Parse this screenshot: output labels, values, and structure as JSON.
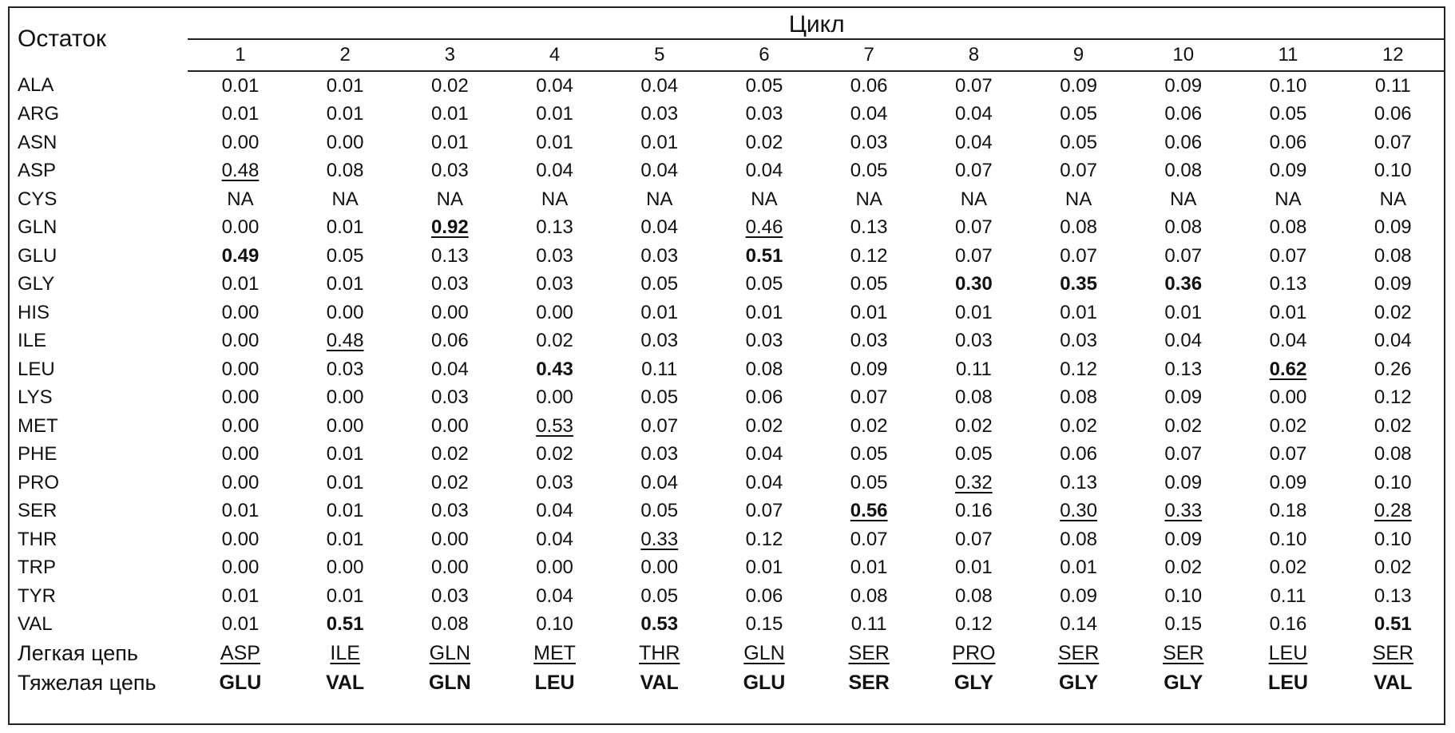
{
  "header": {
    "row_label": "Остаток",
    "title": "Цикл",
    "cycles": [
      "1",
      "2",
      "3",
      "4",
      "5",
      "6",
      "7",
      "8",
      "9",
      "10",
      "11",
      "12"
    ]
  },
  "rows": [
    {
      "label": "ALA",
      "values": [
        "0.01",
        "0.01",
        "0.02",
        "0.04",
        "0.04",
        "0.05",
        "0.06",
        "0.07",
        "0.09",
        "0.09",
        "0.10",
        "0.11"
      ],
      "bold": [],
      "underline": []
    },
    {
      "label": "ARG",
      "values": [
        "0.01",
        "0.01",
        "0.01",
        "0.01",
        "0.03",
        "0.03",
        "0.04",
        "0.04",
        "0.05",
        "0.06",
        "0.05",
        "0.06"
      ],
      "bold": [],
      "underline": []
    },
    {
      "label": "ASN",
      "values": [
        "0.00",
        "0.00",
        "0.01",
        "0.01",
        "0.01",
        "0.02",
        "0.03",
        "0.04",
        "0.05",
        "0.06",
        "0.06",
        "0.07"
      ],
      "bold": [],
      "underline": []
    },
    {
      "label": "ASP",
      "values": [
        "0.48",
        "0.08",
        "0.03",
        "0.04",
        "0.04",
        "0.04",
        "0.05",
        "0.07",
        "0.07",
        "0.08",
        "0.09",
        "0.10"
      ],
      "bold": [],
      "underline": [
        0
      ]
    },
    {
      "label": "CYS",
      "values": [
        "NA",
        "NA",
        "NA",
        "NA",
        "NA",
        "NA",
        "NA",
        "NA",
        "NA",
        "NA",
        "NA",
        "NA"
      ],
      "bold": [],
      "underline": []
    },
    {
      "label": "GLN",
      "values": [
        "0.00",
        "0.01",
        "0.92",
        "0.13",
        "0.04",
        "0.46",
        "0.13",
        "0.07",
        "0.08",
        "0.08",
        "0.08",
        "0.09"
      ],
      "bold": [
        2
      ],
      "underline": [
        2,
        5
      ]
    },
    {
      "label": "GLU",
      "values": [
        "0.49",
        "0.05",
        "0.13",
        "0.03",
        "0.03",
        "0.51",
        "0.12",
        "0.07",
        "0.07",
        "0.07",
        "0.07",
        "0.08"
      ],
      "bold": [
        0,
        5
      ],
      "underline": []
    },
    {
      "label": "GLY",
      "values": [
        "0.01",
        "0.01",
        "0.03",
        "0.03",
        "0.05",
        "0.05",
        "0.05",
        "0.30",
        "0.35",
        "0.36",
        "0.13",
        "0.09"
      ],
      "bold": [
        7,
        8,
        9
      ],
      "underline": []
    },
    {
      "label": "HIS",
      "values": [
        "0.00",
        "0.00",
        "0.00",
        "0.00",
        "0.01",
        "0.01",
        "0.01",
        "0.01",
        "0.01",
        "0.01",
        "0.01",
        "0.02"
      ],
      "bold": [],
      "underline": []
    },
    {
      "label": "ILE",
      "values": [
        "0.00",
        "0.48",
        "0.06",
        "0.02",
        "0.03",
        "0.03",
        "0.03",
        "0.03",
        "0.03",
        "0.04",
        "0.04",
        "0.04"
      ],
      "bold": [],
      "underline": [
        1
      ]
    },
    {
      "label": "LEU",
      "values": [
        "0.00",
        "0.03",
        "0.04",
        "0.43",
        "0.11",
        "0.08",
        "0.09",
        "0.11",
        "0.12",
        "0.13",
        "0.62",
        "0.26"
      ],
      "bold": [
        3,
        10
      ],
      "underline": [
        10
      ]
    },
    {
      "label": "LYS",
      "values": [
        "0.00",
        "0.00",
        "0.03",
        "0.00",
        "0.05",
        "0.06",
        "0.07",
        "0.08",
        "0.08",
        "0.09",
        "0.00",
        "0.12"
      ],
      "bold": [],
      "underline": []
    },
    {
      "label": "MET",
      "values": [
        "0.00",
        "0.00",
        "0.00",
        "0.53",
        "0.07",
        "0.02",
        "0.02",
        "0.02",
        "0.02",
        "0.02",
        "0.02",
        "0.02"
      ],
      "bold": [],
      "underline": [
        3
      ]
    },
    {
      "label": "PHE",
      "values": [
        "0.00",
        "0.01",
        "0.02",
        "0.02",
        "0.03",
        "0.04",
        "0.05",
        "0.05",
        "0.06",
        "0.07",
        "0.07",
        "0.08"
      ],
      "bold": [],
      "underline": []
    },
    {
      "label": "PRO",
      "values": [
        "0.00",
        "0.01",
        "0.02",
        "0.03",
        "0.04",
        "0.04",
        "0.05",
        "0.32",
        "0.13",
        "0.09",
        "0.09",
        "0.10"
      ],
      "bold": [],
      "underline": [
        7
      ]
    },
    {
      "label": "SER",
      "values": [
        "0.01",
        "0.01",
        "0.03",
        "0.04",
        "0.05",
        "0.07",
        "0.56",
        "0.16",
        "0.30",
        "0.33",
        "0.18",
        "0.28"
      ],
      "bold": [
        6
      ],
      "underline": [
        6,
        8,
        9,
        11
      ]
    },
    {
      "label": "THR",
      "values": [
        "0.00",
        "0.01",
        "0.00",
        "0.04",
        "0.33",
        "0.12",
        "0.07",
        "0.07",
        "0.08",
        "0.09",
        "0.10",
        "0.10"
      ],
      "bold": [],
      "underline": [
        4
      ]
    },
    {
      "label": "TRP",
      "values": [
        "0.00",
        "0.00",
        "0.00",
        "0.00",
        "0.00",
        "0.01",
        "0.01",
        "0.01",
        "0.01",
        "0.02",
        "0.02",
        "0.02"
      ],
      "bold": [],
      "underline": []
    },
    {
      "label": "TYR",
      "values": [
        "0.01",
        "0.01",
        "0.03",
        "0.04",
        "0.05",
        "0.06",
        "0.08",
        "0.08",
        "0.09",
        "0.10",
        "0.11",
        "0.13"
      ],
      "bold": [],
      "underline": []
    },
    {
      "label": "VAL",
      "values": [
        "0.01",
        "0.51",
        "0.08",
        "0.10",
        "0.53",
        "0.15",
        "0.11",
        "0.12",
        "0.14",
        "0.15",
        "0.16",
        "0.51"
      ],
      "bold": [
        1,
        4,
        11
      ],
      "underline": []
    }
  ],
  "light_chain": {
    "label": "Легкая цепь",
    "values": [
      "ASP",
      "ILE",
      "GLN",
      "MET",
      "THR",
      "GLN",
      "SER",
      "PRO",
      "SER",
      "SER",
      "LEU",
      "SER"
    ]
  },
  "heavy_chain": {
    "label": "Тяжелая цепь",
    "values": [
      "GLU",
      "VAL",
      "GLN",
      "LEU",
      "VAL",
      "GLU",
      "SER",
      "GLY",
      "GLY",
      "GLY",
      "LEU",
      "VAL"
    ]
  }
}
